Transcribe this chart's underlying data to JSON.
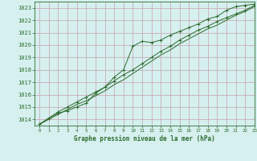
{
  "title": "Graphe pression niveau de la mer (hPa)",
  "xlim": [
    -0.5,
    23
  ],
  "ylim": [
    1013.5,
    1023.5
  ],
  "yticks": [
    1014,
    1015,
    1016,
    1017,
    1018,
    1019,
    1020,
    1021,
    1022,
    1023
  ],
  "xticks": [
    0,
    1,
    2,
    3,
    4,
    5,
    6,
    7,
    8,
    9,
    10,
    11,
    12,
    13,
    14,
    15,
    16,
    17,
    18,
    19,
    20,
    21,
    22,
    23
  ],
  "background_color": "#d5f0ee",
  "grid_color": "#c8a0b0",
  "line_color": "#2d6a2d",
  "marker_color": "#2d6a2d",
  "series1": {
    "x": [
      0,
      1,
      2,
      3,
      4,
      5,
      6,
      7,
      8,
      9,
      10,
      11,
      12,
      13,
      14,
      15,
      16,
      17,
      18,
      19,
      20,
      21,
      22,
      23
    ],
    "y": [
      1013.6,
      1014.1,
      1014.5,
      1014.7,
      1015.0,
      1015.3,
      1016.1,
      1016.6,
      1017.4,
      1018.0,
      1019.9,
      1020.3,
      1020.2,
      1020.4,
      1020.8,
      1021.1,
      1021.4,
      1021.7,
      1022.1,
      1022.3,
      1022.8,
      1023.1,
      1023.2,
      1023.3
    ]
  },
  "series2": {
    "x": [
      0,
      1,
      2,
      3,
      4,
      5,
      6,
      7,
      8,
      9,
      10,
      11,
      12,
      13,
      14,
      15,
      16,
      17,
      18,
      19,
      20,
      21,
      22,
      23
    ],
    "y": [
      1013.6,
      1014.1,
      1014.6,
      1015.0,
      1015.4,
      1015.8,
      1016.2,
      1016.6,
      1017.1,
      1017.6,
      1018.0,
      1018.5,
      1019.0,
      1019.5,
      1019.9,
      1020.4,
      1020.8,
      1021.2,
      1021.5,
      1021.9,
      1022.2,
      1022.5,
      1022.8,
      1023.2
    ]
  },
  "series3": {
    "x": [
      0,
      1,
      2,
      3,
      4,
      5,
      6,
      7,
      8,
      9,
      10,
      11,
      12,
      13,
      14,
      15,
      16,
      17,
      18,
      19,
      20,
      21,
      22,
      23
    ],
    "y": [
      1013.6,
      1014.0,
      1014.4,
      1014.8,
      1015.2,
      1015.5,
      1015.9,
      1016.3,
      1016.8,
      1017.2,
      1017.7,
      1018.2,
      1018.7,
      1019.2,
      1019.6,
      1020.1,
      1020.5,
      1020.9,
      1021.3,
      1021.6,
      1022.0,
      1022.4,
      1022.7,
      1023.1
    ]
  },
  "xlabel_fontsize": 5.5,
  "ylabel_fontsize": 5,
  "xtick_fontsize": 4.2,
  "ytick_fontsize": 5
}
